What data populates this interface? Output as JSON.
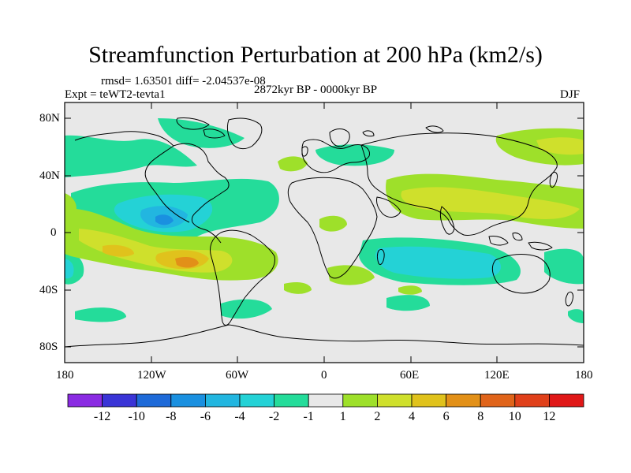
{
  "title": "Streamfunction Perturbation at 200 hPa (km2/s)",
  "stats_line": "rmsd= 1.63501 diff= -2.04537e-08",
  "experiment": "Expt = teWT2-tevta1",
  "period": "2872kyr BP - 0000kyr BP",
  "season": "DJF",
  "lat_ticks": [
    "80N",
    "40N",
    "0",
    "40S",
    "80S"
  ],
  "lon_ticks": [
    "180",
    "120W",
    "60W",
    "0",
    "60E",
    "120E",
    "180"
  ],
  "colorbar": {
    "labels": [
      "-12",
      "-10",
      "-8",
      "-6",
      "-4",
      "-2",
      "-1",
      "1",
      "2",
      "4",
      "6",
      "8",
      "10",
      "12"
    ],
    "colors": [
      "#8a2be2",
      "#3a34d6",
      "#1e6ad8",
      "#1a90e0",
      "#22b6e0",
      "#24d2d6",
      "#24dc9a",
      "#e8e8e8",
      "#9ee02a",
      "#cfe02c",
      "#e0c21c",
      "#e29018",
      "#e0641a",
      "#e0401a",
      "#e01818"
    ]
  },
  "colors": {
    "background": "#e8e8e8",
    "coast": "#000000"
  }
}
